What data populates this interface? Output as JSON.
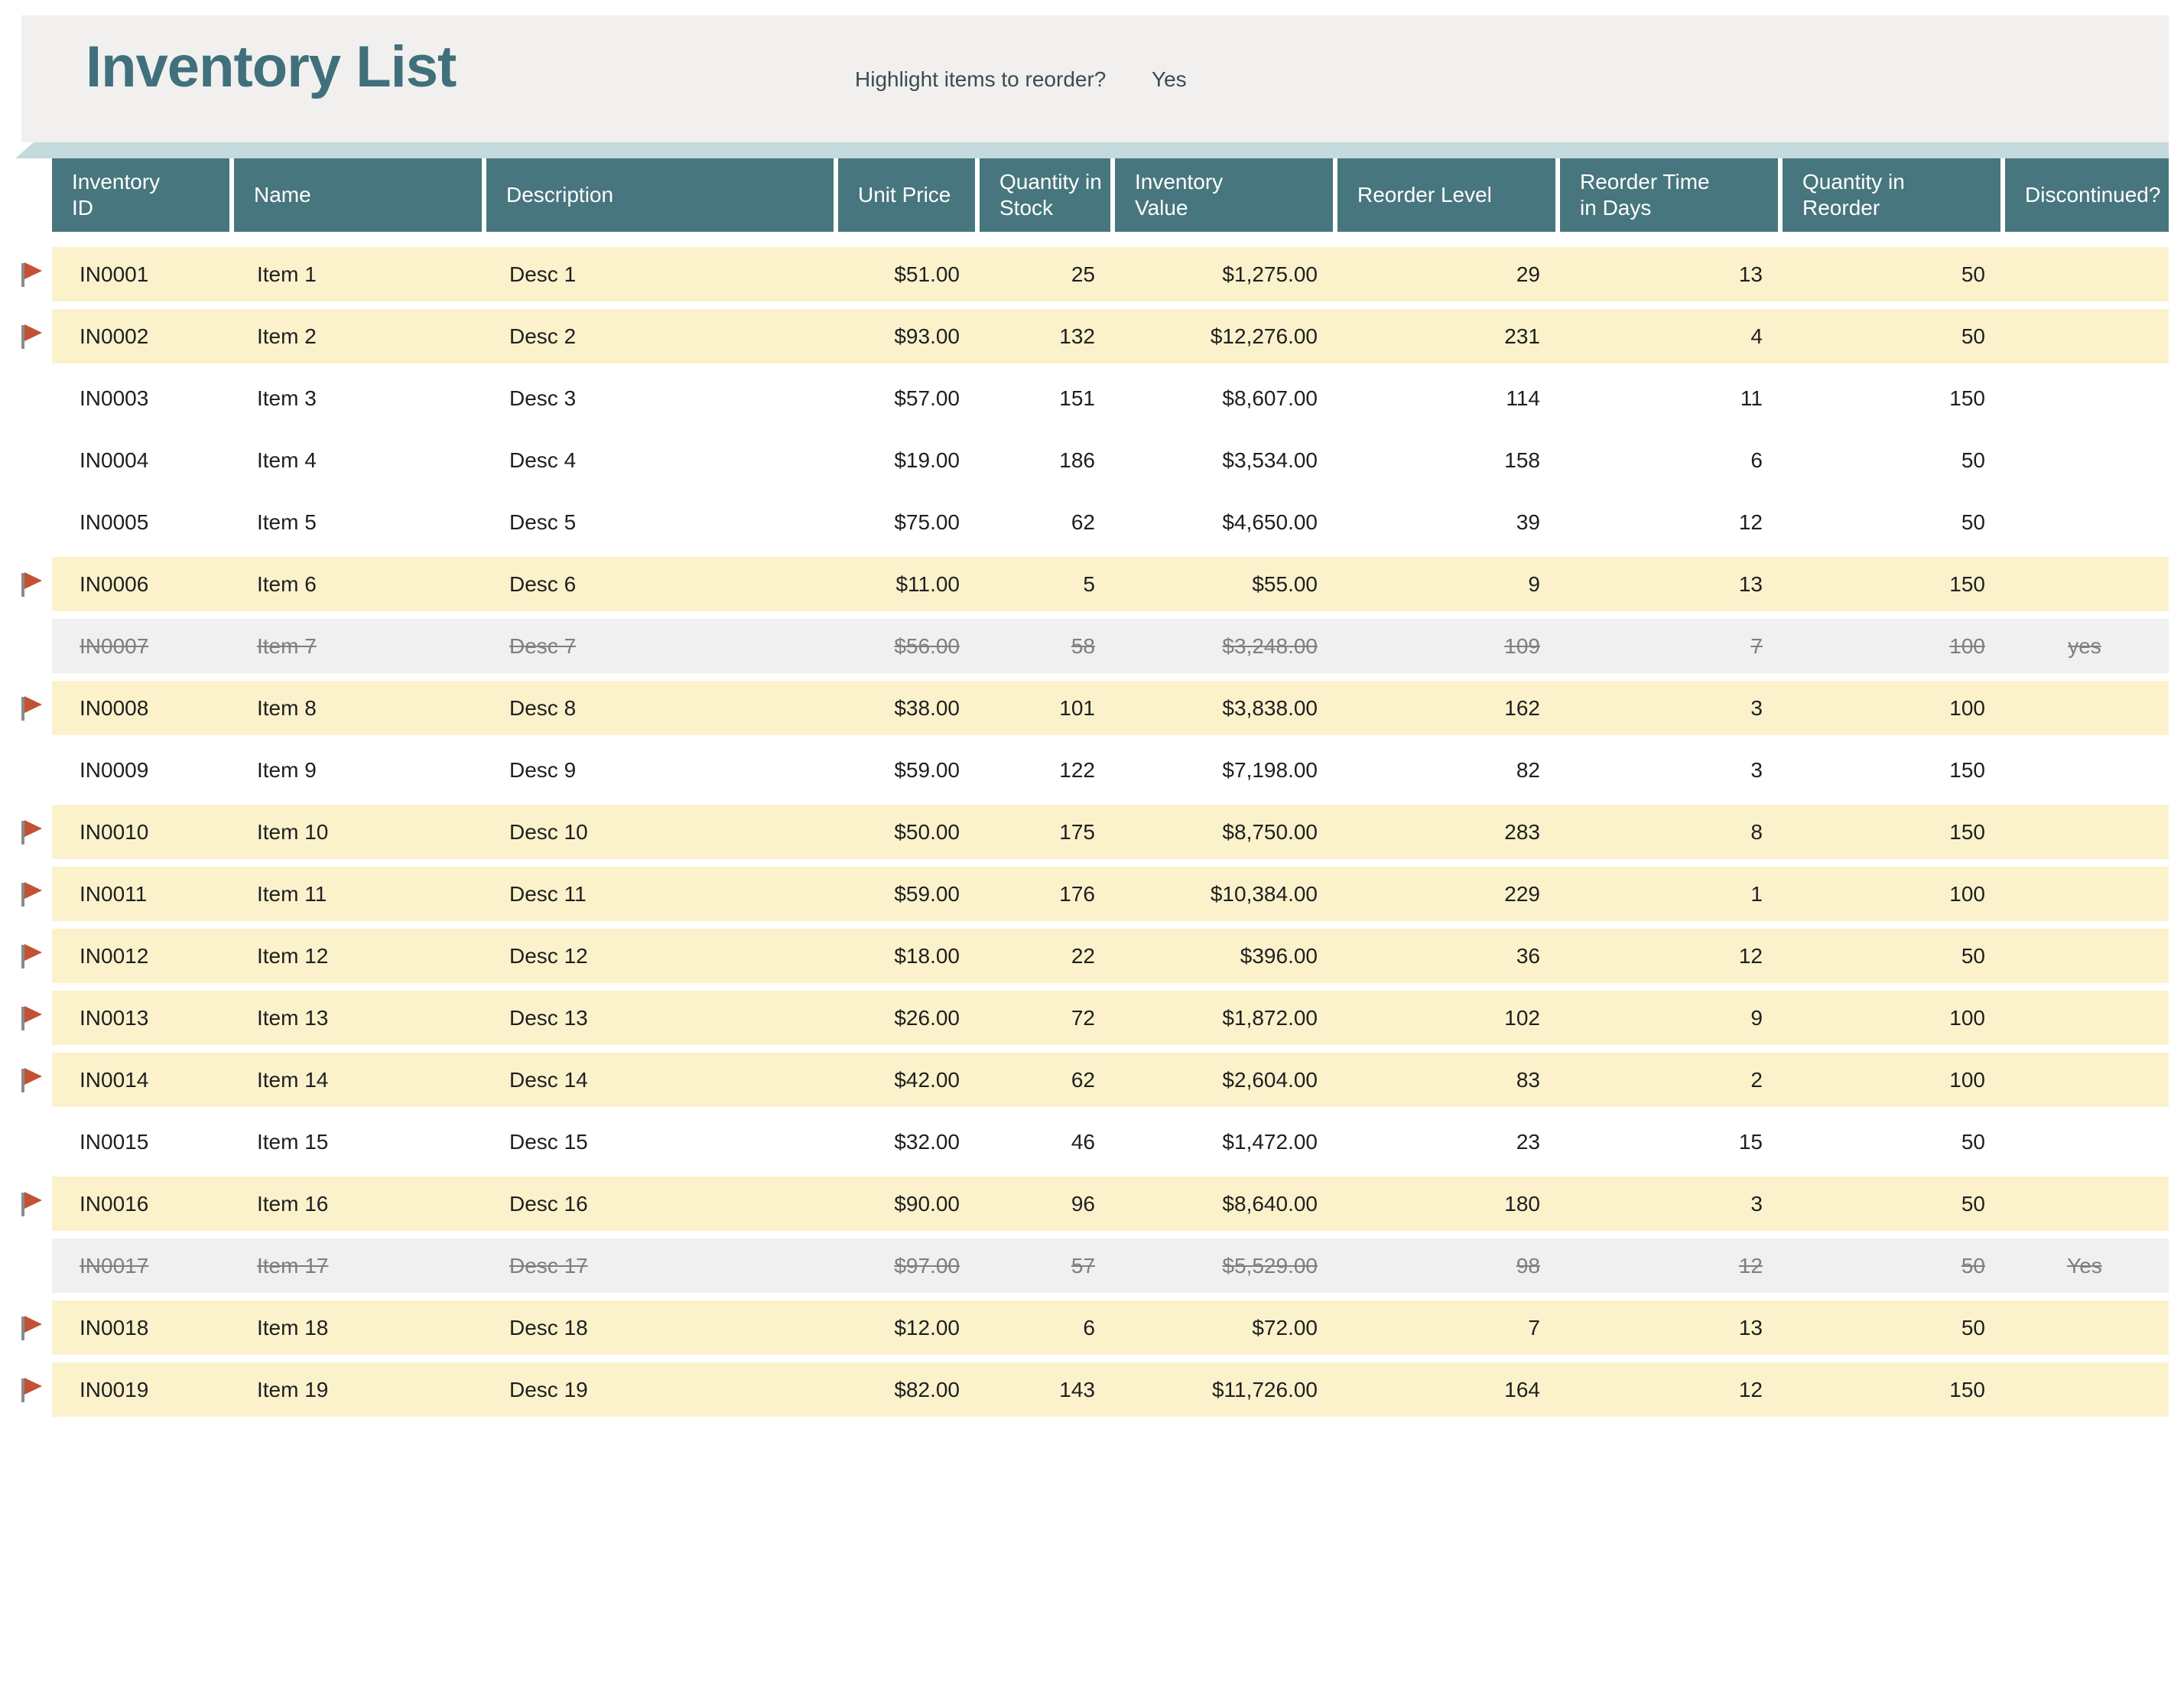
{
  "page": {
    "title": "Inventory List"
  },
  "reorder_control": {
    "label": "Highlight items to reorder?",
    "value": "Yes"
  },
  "colors": {
    "header_teal": "#47767E",
    "highlight_yellow": "#FBF2CC",
    "discontinued_row_gray": "#F0F0F0",
    "discontinued_text_gray": "#7F7F7F",
    "flag_orange": "#C25233",
    "ribbon_blue": "#C4DADD",
    "title_text_teal": "#40707C",
    "title_band_gray": "#F1F0EF"
  },
  "icons": {
    "flag": "reorder-flag-icon"
  },
  "table": {
    "columns": [
      {
        "key": "inventory_id",
        "label": "Inventory\nID",
        "align": "text"
      },
      {
        "key": "name",
        "label": "Name",
        "align": "text"
      },
      {
        "key": "description",
        "label": "Description",
        "align": "text"
      },
      {
        "key": "unit_price",
        "label": "Unit Price",
        "align": "num"
      },
      {
        "key": "quantity_in_stock",
        "label": "Quantity in\nStock",
        "align": "num"
      },
      {
        "key": "inventory_value",
        "label": "Inventory\nValue",
        "align": "num"
      },
      {
        "key": "reorder_level",
        "label": "Reorder Level",
        "align": "num"
      },
      {
        "key": "reorder_time_in_days",
        "label": "Reorder Time\nin Days",
        "align": "num"
      },
      {
        "key": "quantity_in_reorder",
        "label": "Quantity in\nReorder",
        "align": "num"
      },
      {
        "key": "discontinued",
        "label": "Discontinued?",
        "align": "center"
      }
    ],
    "rows": [
      {
        "inventory_id": "IN0001",
        "name": "Item 1",
        "description": "Desc 1",
        "unit_price": "$51.00",
        "quantity_in_stock": "25",
        "inventory_value": "$1,275.00",
        "reorder_level": "29",
        "reorder_time_in_days": "13",
        "quantity_in_reorder": "50",
        "discontinued": "",
        "flagged": true,
        "state": "highlight"
      },
      {
        "inventory_id": "IN0002",
        "name": "Item 2",
        "description": "Desc 2",
        "unit_price": "$93.00",
        "quantity_in_stock": "132",
        "inventory_value": "$12,276.00",
        "reorder_level": "231",
        "reorder_time_in_days": "4",
        "quantity_in_reorder": "50",
        "discontinued": "",
        "flagged": true,
        "state": "highlight"
      },
      {
        "inventory_id": "IN0003",
        "name": "Item 3",
        "description": "Desc 3",
        "unit_price": "$57.00",
        "quantity_in_stock": "151",
        "inventory_value": "$8,607.00",
        "reorder_level": "114",
        "reorder_time_in_days": "11",
        "quantity_in_reorder": "150",
        "discontinued": "",
        "flagged": false,
        "state": "normal"
      },
      {
        "inventory_id": "IN0004",
        "name": "Item 4",
        "description": "Desc 4",
        "unit_price": "$19.00",
        "quantity_in_stock": "186",
        "inventory_value": "$3,534.00",
        "reorder_level": "158",
        "reorder_time_in_days": "6",
        "quantity_in_reorder": "50",
        "discontinued": "",
        "flagged": false,
        "state": "normal"
      },
      {
        "inventory_id": "IN0005",
        "name": "Item 5",
        "description": "Desc 5",
        "unit_price": "$75.00",
        "quantity_in_stock": "62",
        "inventory_value": "$4,650.00",
        "reorder_level": "39",
        "reorder_time_in_days": "12",
        "quantity_in_reorder": "50",
        "discontinued": "",
        "flagged": false,
        "state": "normal"
      },
      {
        "inventory_id": "IN0006",
        "name": "Item 6",
        "description": "Desc 6",
        "unit_price": "$11.00",
        "quantity_in_stock": "5",
        "inventory_value": "$55.00",
        "reorder_level": "9",
        "reorder_time_in_days": "13",
        "quantity_in_reorder": "150",
        "discontinued": "",
        "flagged": true,
        "state": "highlight"
      },
      {
        "inventory_id": "IN0007",
        "name": "Item 7",
        "description": "Desc 7",
        "unit_price": "$56.00",
        "quantity_in_stock": "58",
        "inventory_value": "$3,248.00",
        "reorder_level": "109",
        "reorder_time_in_days": "7",
        "quantity_in_reorder": "100",
        "discontinued": "yes",
        "flagged": false,
        "state": "discontinued"
      },
      {
        "inventory_id": "IN0008",
        "name": "Item 8",
        "description": "Desc 8",
        "unit_price": "$38.00",
        "quantity_in_stock": "101",
        "inventory_value": "$3,838.00",
        "reorder_level": "162",
        "reorder_time_in_days": "3",
        "quantity_in_reorder": "100",
        "discontinued": "",
        "flagged": true,
        "state": "highlight"
      },
      {
        "inventory_id": "IN0009",
        "name": "Item 9",
        "description": "Desc 9",
        "unit_price": "$59.00",
        "quantity_in_stock": "122",
        "inventory_value": "$7,198.00",
        "reorder_level": "82",
        "reorder_time_in_days": "3",
        "quantity_in_reorder": "150",
        "discontinued": "",
        "flagged": false,
        "state": "normal"
      },
      {
        "inventory_id": "IN0010",
        "name": "Item 10",
        "description": "Desc 10",
        "unit_price": "$50.00",
        "quantity_in_stock": "175",
        "inventory_value": "$8,750.00",
        "reorder_level": "283",
        "reorder_time_in_days": "8",
        "quantity_in_reorder": "150",
        "discontinued": "",
        "flagged": true,
        "state": "highlight"
      },
      {
        "inventory_id": "IN0011",
        "name": "Item 11",
        "description": "Desc 11",
        "unit_price": "$59.00",
        "quantity_in_stock": "176",
        "inventory_value": "$10,384.00",
        "reorder_level": "229",
        "reorder_time_in_days": "1",
        "quantity_in_reorder": "100",
        "discontinued": "",
        "flagged": true,
        "state": "highlight"
      },
      {
        "inventory_id": "IN0012",
        "name": "Item 12",
        "description": "Desc 12",
        "unit_price": "$18.00",
        "quantity_in_stock": "22",
        "inventory_value": "$396.00",
        "reorder_level": "36",
        "reorder_time_in_days": "12",
        "quantity_in_reorder": "50",
        "discontinued": "",
        "flagged": true,
        "state": "highlight"
      },
      {
        "inventory_id": "IN0013",
        "name": "Item 13",
        "description": "Desc 13",
        "unit_price": "$26.00",
        "quantity_in_stock": "72",
        "inventory_value": "$1,872.00",
        "reorder_level": "102",
        "reorder_time_in_days": "9",
        "quantity_in_reorder": "100",
        "discontinued": "",
        "flagged": true,
        "state": "highlight"
      },
      {
        "inventory_id": "IN0014",
        "name": "Item 14",
        "description": "Desc 14",
        "unit_price": "$42.00",
        "quantity_in_stock": "62",
        "inventory_value": "$2,604.00",
        "reorder_level": "83",
        "reorder_time_in_days": "2",
        "quantity_in_reorder": "100",
        "discontinued": "",
        "flagged": true,
        "state": "highlight"
      },
      {
        "inventory_id": "IN0015",
        "name": "Item 15",
        "description": "Desc 15",
        "unit_price": "$32.00",
        "quantity_in_stock": "46",
        "inventory_value": "$1,472.00",
        "reorder_level": "23",
        "reorder_time_in_days": "15",
        "quantity_in_reorder": "50",
        "discontinued": "",
        "flagged": false,
        "state": "normal"
      },
      {
        "inventory_id": "IN0016",
        "name": "Item 16",
        "description": "Desc 16",
        "unit_price": "$90.00",
        "quantity_in_stock": "96",
        "inventory_value": "$8,640.00",
        "reorder_level": "180",
        "reorder_time_in_days": "3",
        "quantity_in_reorder": "50",
        "discontinued": "",
        "flagged": true,
        "state": "highlight"
      },
      {
        "inventory_id": "IN0017",
        "name": "Item 17",
        "description": "Desc 17",
        "unit_price": "$97.00",
        "quantity_in_stock": "57",
        "inventory_value": "$5,529.00",
        "reorder_level": "98",
        "reorder_time_in_days": "12",
        "quantity_in_reorder": "50",
        "discontinued": "Yes",
        "flagged": false,
        "state": "discontinued"
      },
      {
        "inventory_id": "IN0018",
        "name": "Item 18",
        "description": "Desc 18",
        "unit_price": "$12.00",
        "quantity_in_stock": "6",
        "inventory_value": "$72.00",
        "reorder_level": "7",
        "reorder_time_in_days": "13",
        "quantity_in_reorder": "50",
        "discontinued": "",
        "flagged": true,
        "state": "highlight"
      },
      {
        "inventory_id": "IN0019",
        "name": "Item 19",
        "description": "Desc 19",
        "unit_price": "$82.00",
        "quantity_in_stock": "143",
        "inventory_value": "$11,726.00",
        "reorder_level": "164",
        "reorder_time_in_days": "12",
        "quantity_in_reorder": "150",
        "discontinued": "",
        "flagged": true,
        "state": "highlight"
      }
    ]
  }
}
